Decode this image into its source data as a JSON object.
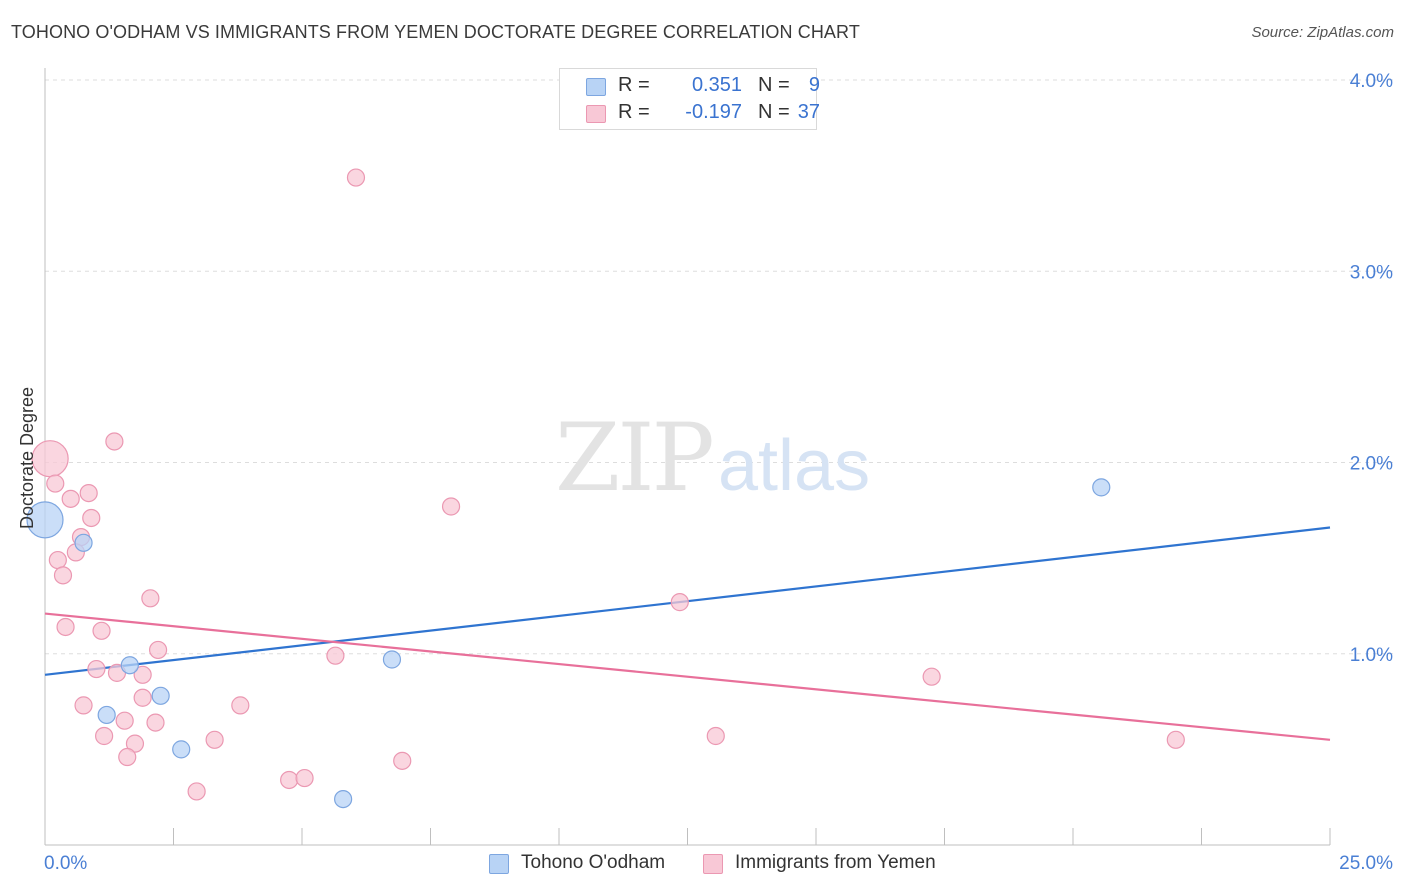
{
  "header": {
    "title": "TOHONO O'ODHAM VS IMMIGRANTS FROM YEMEN DOCTORATE DEGREE CORRELATION CHART",
    "source": "Source: ZipAtlas.com"
  },
  "watermark": {
    "zip": "ZIP",
    "atlas": "atlas"
  },
  "legend_top": {
    "rows": [
      {
        "r_label": "R =",
        "r_value": "0.351",
        "n_label": "N =",
        "n_value": "9"
      },
      {
        "r_label": "R =",
        "r_value": "-0.197",
        "n_label": "N =",
        "n_value": "37"
      }
    ]
  },
  "legend_bottom": {
    "items": [
      {
        "label": "Tohono O'odham"
      },
      {
        "label": "Immigrants from Yemen"
      }
    ]
  },
  "colors": {
    "blue_fill": "#b8d3f5",
    "blue_stroke": "#7da6e0",
    "blue_line": "#2f74d0",
    "pink_fill": "#f8c8d6",
    "pink_stroke": "#eb98b2",
    "pink_line": "#e8709a",
    "axis_text": "#4a7fd4",
    "grid": "#dddddd"
  },
  "chart_data": {
    "type": "scatter",
    "title": "TOHONO O'ODHAM VS IMMIGRANTS FROM YEMEN DOCTORATE DEGREE CORRELATION CHART",
    "xlabel": "",
    "ylabel": "Doctorate Degree",
    "xlim": [
      0,
      25
    ],
    "ylim": [
      0,
      4.0
    ],
    "x_tick_labels": [
      "0.0%",
      "25.0%"
    ],
    "y_ticks": [
      1.0,
      2.0,
      3.0,
      4.0
    ],
    "y_tick_labels": [
      "1.0%",
      "2.0%",
      "3.0%",
      "4.0%"
    ],
    "grid": true,
    "series": [
      {
        "name": "Tohono O'odham",
        "color": "blue",
        "points": [
          {
            "x": 0.0,
            "y": 1.7,
            "size": "large"
          },
          {
            "x": 0.75,
            "y": 1.58
          },
          {
            "x": 1.65,
            "y": 0.94
          },
          {
            "x": 2.25,
            "y": 0.78
          },
          {
            "x": 1.2,
            "y": 0.68
          },
          {
            "x": 2.65,
            "y": 0.5
          },
          {
            "x": 6.75,
            "y": 0.97
          },
          {
            "x": 5.8,
            "y": 0.24
          },
          {
            "x": 20.55,
            "y": 1.87
          }
        ],
        "trend": {
          "x0": 0,
          "y0": 0.89,
          "x1": 25,
          "y1": 1.66
        }
      },
      {
        "name": "Immigrants from Yemen",
        "color": "pink",
        "points": [
          {
            "x": 0.1,
            "y": 2.02,
            "size": "large"
          },
          {
            "x": 0.2,
            "y": 1.89
          },
          {
            "x": 1.35,
            "y": 2.11
          },
          {
            "x": 0.5,
            "y": 1.81
          },
          {
            "x": 0.85,
            "y": 1.84
          },
          {
            "x": 0.9,
            "y": 1.71
          },
          {
            "x": 0.7,
            "y": 1.61
          },
          {
            "x": 0.6,
            "y": 1.53
          },
          {
            "x": 0.25,
            "y": 1.49
          },
          {
            "x": 0.35,
            "y": 1.41
          },
          {
            "x": 2.05,
            "y": 1.29
          },
          {
            "x": 0.4,
            "y": 1.14
          },
          {
            "x": 1.1,
            "y": 1.12
          },
          {
            "x": 2.2,
            "y": 1.02
          },
          {
            "x": 1.0,
            "y": 0.92
          },
          {
            "x": 1.4,
            "y": 0.9
          },
          {
            "x": 1.9,
            "y": 0.89
          },
          {
            "x": 1.9,
            "y": 0.77
          },
          {
            "x": 0.75,
            "y": 0.73
          },
          {
            "x": 3.8,
            "y": 0.73
          },
          {
            "x": 1.55,
            "y": 0.65
          },
          {
            "x": 2.15,
            "y": 0.64
          },
          {
            "x": 1.15,
            "y": 0.57
          },
          {
            "x": 1.75,
            "y": 0.53
          },
          {
            "x": 3.3,
            "y": 0.55
          },
          {
            "x": 1.6,
            "y": 0.46
          },
          {
            "x": 2.95,
            "y": 0.28
          },
          {
            "x": 4.75,
            "y": 0.34
          },
          {
            "x": 5.05,
            "y": 0.35
          },
          {
            "x": 6.95,
            "y": 0.44
          },
          {
            "x": 5.65,
            "y": 0.99
          },
          {
            "x": 6.05,
            "y": 3.49
          },
          {
            "x": 7.9,
            "y": 1.77
          },
          {
            "x": 12.35,
            "y": 1.27
          },
          {
            "x": 13.05,
            "y": 0.57
          },
          {
            "x": 17.25,
            "y": 0.88
          },
          {
            "x": 22.0,
            "y": 0.55
          }
        ],
        "trend": {
          "x0": 0,
          "y0": 1.21,
          "x1": 25,
          "y1": 0.55
        }
      }
    ]
  }
}
